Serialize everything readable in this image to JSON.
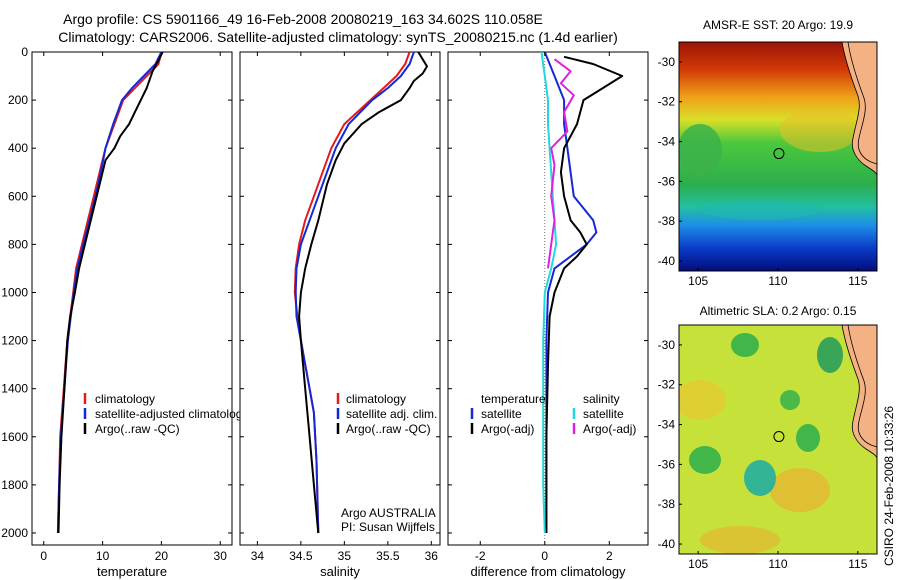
{
  "header": {
    "line1": "Argo profile: CS 5901166_49 16-Feb-2008 20080219_163 34.602S 110.058E",
    "line2": "Climatology: CARS2006. Satellite-adjusted climatology: synTS_20080215.nc (1.4d earlier)"
  },
  "credit": {
    "sidebar": "CSIRO 24-Feb-2008 10:33:26",
    "org": "Argo AUSTRALIA",
    "pi": "PI: Susan Wijffels"
  },
  "colors": {
    "climatology": "#e31a1c",
    "satellite": "#1428d8",
    "argo": "#000000",
    "sal_satellite": "#22d8e0",
    "sal_argo": "#e020e0",
    "land": "#f4b183"
  },
  "chart_data": [
    {
      "type": "line",
      "xlabel": "temperature",
      "xlim": [
        -2,
        32
      ],
      "ylim": [
        2050,
        0
      ],
      "xticks": [
        "0",
        "10",
        "20",
        "30"
      ],
      "xtick_values": [
        0,
        10,
        20,
        30
      ],
      "yticks": [
        "0",
        "200",
        "400",
        "600",
        "800",
        "1000",
        "1200",
        "1400",
        "1600",
        "1800",
        "2000"
      ],
      "ytick_values": [
        0,
        200,
        400,
        600,
        800,
        1000,
        1200,
        1400,
        1600,
        1800,
        2000
      ],
      "legend": [
        "climatology",
        "satellite-adjusted climatology",
        "Argo(..raw -QC)"
      ],
      "series": [
        {
          "name": "climatology",
          "color": "#e31a1c",
          "x": [
            20,
            19.5,
            17.5,
            15.5,
            13.5,
            12,
            10.5,
            9.5,
            8.5,
            7.5,
            6.5,
            5.5,
            5,
            4.5,
            4,
            3.7,
            3.4,
            3.1,
            2.8,
            2.6,
            2.4
          ],
          "y": [
            0,
            50,
            100,
            150,
            200,
            300,
            400,
            500,
            600,
            700,
            800,
            900,
            1000,
            1100,
            1200,
            1300,
            1400,
            1500,
            1600,
            1800,
            2000
          ]
        },
        {
          "name": "satellite-adjusted climatology",
          "color": "#1428d8",
          "x": [
            20,
            19,
            17,
            15,
            13.3,
            11.8,
            10.5,
            9.7,
            8.8,
            7.8,
            6.7,
            5.7,
            5.1,
            4.6,
            4.1,
            3.8,
            3.5,
            3.2,
            2.9,
            2.6,
            2.4
          ],
          "y": [
            0,
            50,
            100,
            150,
            200,
            300,
            400,
            500,
            600,
            700,
            800,
            900,
            1000,
            1100,
            1200,
            1300,
            1400,
            1500,
            1600,
            1800,
            2000
          ]
        },
        {
          "name": "Argo(..raw -QC)",
          "color": "#000000",
          "x": [
            20.2,
            19.6,
            18.5,
            17.5,
            16.5,
            15.5,
            14.5,
            13,
            12,
            10.5,
            10,
            9,
            8,
            7,
            6,
            5.3,
            4.5,
            4,
            3.5,
            3,
            2.7,
            2.5
          ],
          "y": [
            0,
            30,
            80,
            150,
            200,
            250,
            300,
            350,
            400,
            450,
            500,
            600,
            700,
            800,
            900,
            1000,
            1100,
            1200,
            1400,
            1600,
            1800,
            2000
          ]
        }
      ]
    },
    {
      "type": "line",
      "xlabel": "salinity",
      "xlim": [
        33.8,
        36.1
      ],
      "ylim": [
        2050,
        0
      ],
      "xticks": [
        "34",
        "34.5",
        "35",
        "35.5",
        "36"
      ],
      "xtick_values": [
        34,
        34.5,
        35,
        35.5,
        36
      ],
      "legend": [
        "climatology",
        "satellite adj. clim.",
        "Argo(..raw -QC)"
      ],
      "series": [
        {
          "name": "climatology",
          "color": "#e31a1c",
          "x": [
            35.75,
            35.7,
            35.6,
            35.45,
            35.3,
            35.0,
            34.85,
            34.75,
            34.65,
            34.55,
            34.48,
            34.44,
            34.43,
            34.46,
            34.5,
            34.55,
            34.6,
            34.65,
            34.68,
            34.7
          ],
          "y": [
            0,
            50,
            100,
            150,
            200,
            300,
            400,
            500,
            600,
            700,
            800,
            900,
            1000,
            1100,
            1200,
            1300,
            1400,
            1500,
            1700,
            2000
          ]
        },
        {
          "name": "satellite adj. clim.",
          "color": "#1428d8",
          "x": [
            35.8,
            35.75,
            35.65,
            35.5,
            35.32,
            35.05,
            34.9,
            34.8,
            34.7,
            34.6,
            34.5,
            34.45,
            34.44,
            34.45,
            34.5,
            34.55,
            34.6,
            34.65,
            34.68,
            34.7
          ],
          "y": [
            0,
            50,
            100,
            150,
            200,
            300,
            400,
            500,
            600,
            700,
            800,
            900,
            1000,
            1100,
            1200,
            1300,
            1400,
            1500,
            1700,
            2000
          ]
        },
        {
          "name": "Argo(..raw -QC)",
          "color": "#000000",
          "x": [
            35.85,
            35.9,
            35.95,
            35.9,
            35.8,
            35.75,
            35.65,
            35.4,
            35.2,
            35.0,
            34.9,
            34.8,
            34.7,
            34.62,
            34.55,
            34.5,
            34.48,
            34.5,
            34.55,
            34.6,
            34.65,
            34.7
          ],
          "y": [
            0,
            30,
            60,
            90,
            120,
            150,
            200,
            250,
            300,
            380,
            450,
            550,
            700,
            800,
            900,
            1000,
            1100,
            1200,
            1400,
            1600,
            1800,
            2000
          ]
        }
      ]
    },
    {
      "type": "line",
      "xlabel": "difference from climatology",
      "xlim": [
        -3,
        3.2
      ],
      "ylim": [
        2050,
        0
      ],
      "xticks": [
        "-2",
        "0",
        "2"
      ],
      "xtick_values": [
        -2,
        0,
        2
      ],
      "legend_headers": [
        "temperature",
        "salinity"
      ],
      "legend": [
        "satellite",
        "Argo(-adj)",
        "satellite",
        "Argo(-adj)"
      ],
      "series": [
        {
          "name": "satellite",
          "color": "#1428d8",
          "x": [
            0,
            0.3,
            0.6,
            0.6,
            0.7,
            0.8,
            0.9,
            1.2,
            1.5,
            1.6,
            1.3,
            0.8,
            0.3,
            0.1,
            0.05,
            0.05,
            0.05,
            0.05,
            0.05
          ],
          "y": [
            0,
            100,
            200,
            300,
            400,
            500,
            600,
            650,
            700,
            750,
            800,
            850,
            900,
            1000,
            1200,
            1400,
            1600,
            1800,
            2000
          ]
        },
        {
          "name": "Argo(-adj)",
          "color": "#000000",
          "x": [
            0.6,
            1.5,
            2.4,
            1.8,
            1.2,
            1.0,
            0.6,
            0.5,
            0.6,
            0.8,
            1.1,
            1.3,
            1.0,
            0.6,
            0.3,
            0.15,
            0.1,
            0.05,
            0.05
          ],
          "y": [
            20,
            50,
            100,
            150,
            200,
            300,
            400,
            500,
            600,
            700,
            750,
            800,
            850,
            900,
            1000,
            1100,
            1300,
            1600,
            2000
          ]
        },
        {
          "name": "satellite",
          "color": "#22d8e0",
          "x": [
            -0.1,
            0.0,
            0.1,
            0.1,
            0.15,
            0.2,
            0.25,
            0.3,
            0.35,
            0.2,
            0.0,
            -0.05,
            -0.05,
            -0.05,
            -0.05,
            0.0
          ],
          "y": [
            0,
            100,
            200,
            300,
            400,
            500,
            600,
            700,
            800,
            900,
            1000,
            1200,
            1400,
            1600,
            1800,
            2000
          ]
        },
        {
          "name": "Argo(-adj)",
          "color": "#e020e0",
          "x": [
            0.3,
            0.8,
            0.5,
            0.9,
            0.6,
            0.7,
            0.2,
            0.3,
            0.2,
            0.3,
            0.2,
            0.1
          ],
          "y": [
            30,
            80,
            130,
            180,
            250,
            330,
            400,
            470,
            600,
            700,
            800,
            900
          ]
        }
      ]
    },
    {
      "type": "heatmap",
      "title": "AMSR-E SST: 20 Argo: 19.9",
      "xlim": [
        103.8,
        116.2
      ],
      "ylim": [
        -40.5,
        -29
      ],
      "xticks": [
        "105",
        "110",
        "115"
      ],
      "xtick_values": [
        105,
        110,
        115
      ],
      "yticks": [
        "-30",
        "-32",
        "-34",
        "-36",
        "-38",
        "-40"
      ],
      "ytick_values": [
        -30,
        -32,
        -34,
        -36,
        -38,
        -40
      ],
      "float_position": {
        "lon": 110.058,
        "lat": -34.602
      }
    },
    {
      "type": "heatmap",
      "title": "Altimetric SLA: 0.2 Argo: 0.15",
      "xlim": [
        103.8,
        116.2
      ],
      "ylim": [
        -40.5,
        -29
      ],
      "xticks": [
        "105",
        "110",
        "115"
      ],
      "xtick_values": [
        105,
        110,
        115
      ],
      "yticks": [
        "-30",
        "-32",
        "-34",
        "-36",
        "-38",
        "-40"
      ],
      "ytick_values": [
        -30,
        -32,
        -34,
        -36,
        -38,
        -40
      ],
      "float_position": {
        "lon": 110.058,
        "lat": -34.602
      }
    }
  ]
}
